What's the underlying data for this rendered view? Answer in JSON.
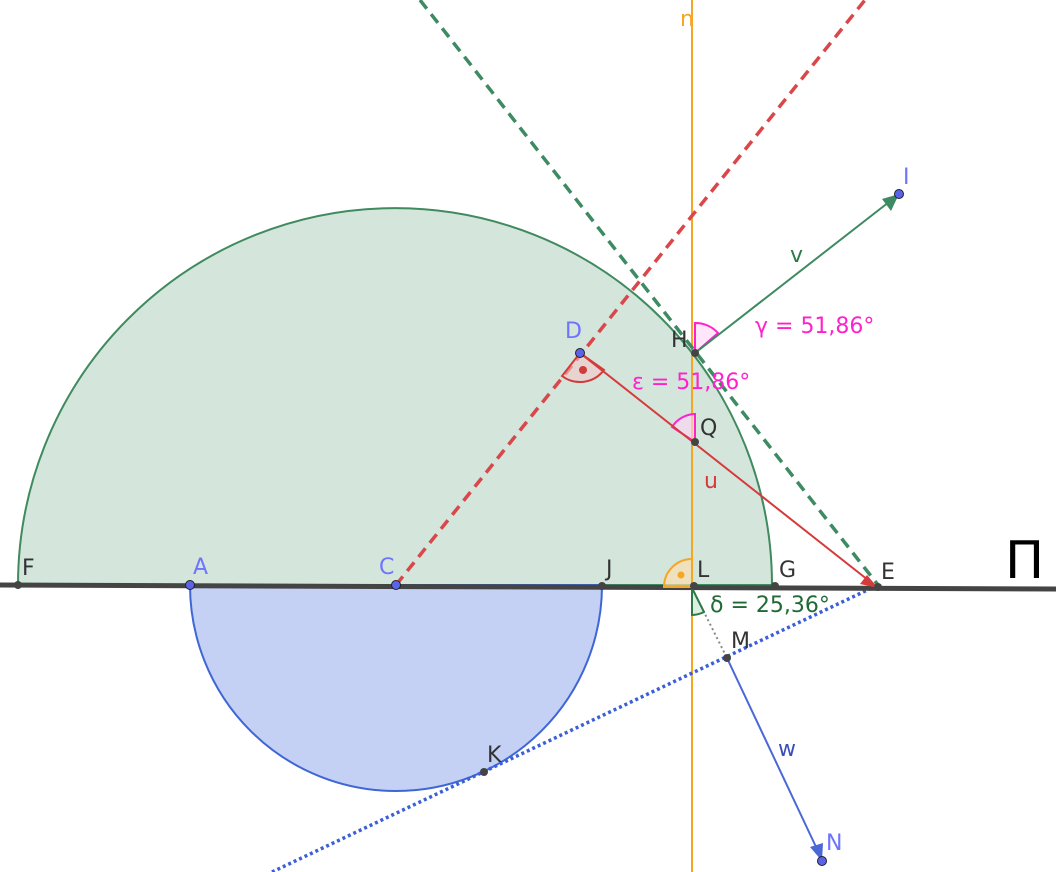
{
  "diagram": {
    "plane_label": "Π",
    "line_n_label": "n",
    "points": {
      "A": "A",
      "C": "C",
      "D": "D",
      "E": "E",
      "F": "F",
      "G": "G",
      "H": "H",
      "I": "I",
      "J": "J",
      "K": "K",
      "L": "L",
      "M": "M",
      "N": "N",
      "Q": "Q"
    },
    "vectors": {
      "u": "u",
      "v": "v",
      "w": "w"
    },
    "angles": {
      "gamma": "γ = 51,86°",
      "epsilon": "ε = 51,86°",
      "delta": "δ = 25,36°"
    },
    "colors": {
      "large_half_disk_fill": "#d4e5dc",
      "large_half_disk_stroke": "#3f8a5e",
      "small_half_disk_fill": "#c4d0f4",
      "small_half_disk_stroke": "#3f66d6",
      "plane_line": "#444444",
      "normal_line": "#f5a623",
      "red_dashed": "#d9474a",
      "green_dashed": "#3e8a63",
      "blue_dotted": "#3a5fd8",
      "vector_u": "#d63a3a",
      "vector_v": "#3e8a63",
      "vector_w": "#4a68d8",
      "angle_magenta": "#ff22cc",
      "angle_orange": "#f5a623",
      "angle_green": "#2f7a4a",
      "right_angle_red": "#d13b3b",
      "point_dark": "#444444",
      "point_blue": "#5b63e8"
    }
  }
}
